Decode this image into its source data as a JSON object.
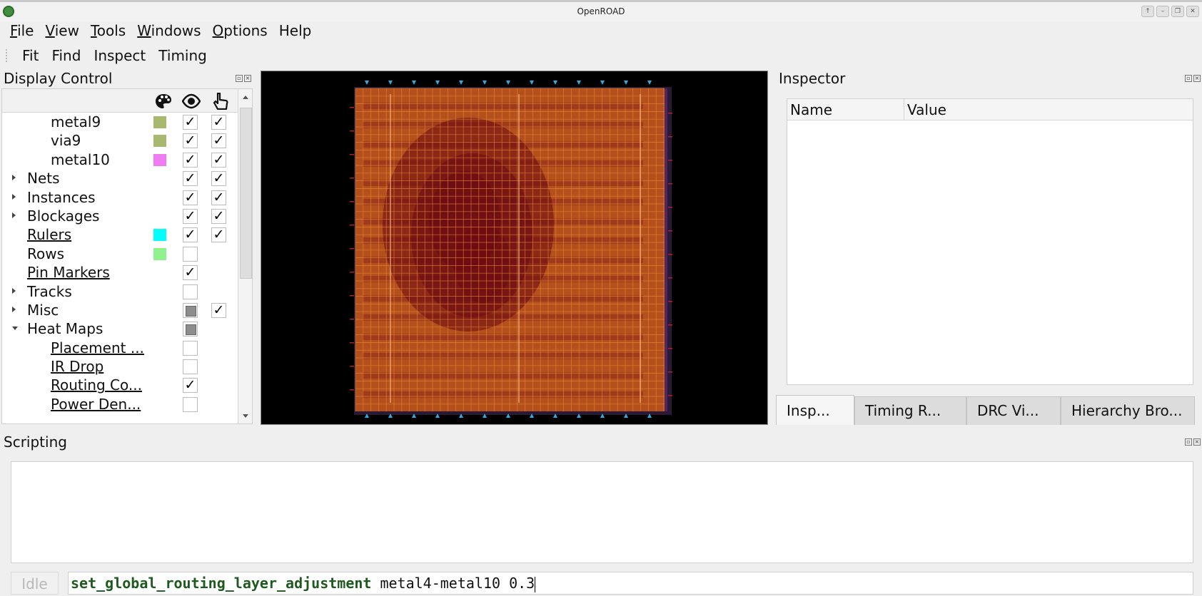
{
  "window": {
    "title": "OpenROAD",
    "controls": [
      "↑",
      "–",
      "❐",
      "✕"
    ]
  },
  "menubar": [
    {
      "mnemonic": "F",
      "rest": "ile"
    },
    {
      "mnemonic": "V",
      "rest": "iew"
    },
    {
      "mnemonic": "T",
      "rest": "ools"
    },
    {
      "mnemonic": "W",
      "rest": "indows"
    },
    {
      "mnemonic": "O",
      "rest": "ptions"
    },
    {
      "mnemonic": "",
      "rest": "Help"
    }
  ],
  "toolbar": [
    "Fit",
    "Find",
    "Inspect",
    "Timing"
  ],
  "display_control": {
    "title": "Display Control",
    "rows": [
      {
        "label": "metal9",
        "indent": 2,
        "swatch": "#a8b96f",
        "visible": "checked",
        "selectable": "checked"
      },
      {
        "label": "via9",
        "indent": 2,
        "swatch": "#a8b96f",
        "visible": "checked",
        "selectable": "checked"
      },
      {
        "label": "metal10",
        "indent": 2,
        "swatch": "#ef7cf0",
        "visible": "checked",
        "selectable": "checked"
      },
      {
        "label": "Nets",
        "indent": 1,
        "expander": "right",
        "visible": "checked",
        "selectable": "checked"
      },
      {
        "label": "Instances",
        "indent": 1,
        "expander": "right",
        "visible": "checked",
        "selectable": "checked"
      },
      {
        "label": "Blockages",
        "indent": 1,
        "expander": "right",
        "visible": "checked",
        "selectable": "checked"
      },
      {
        "label": "Rulers",
        "indent": 1,
        "link": true,
        "swatch": "#00ffff",
        "visible": "checked",
        "selectable": "checked"
      },
      {
        "label": "Rows",
        "indent": 1,
        "swatch": "#8ff28f",
        "visible": "unchecked"
      },
      {
        "label": "Pin Markers",
        "indent": 1,
        "link": true,
        "visible": "checked"
      },
      {
        "label": "Tracks",
        "indent": 1,
        "expander": "right",
        "visible": "unchecked"
      },
      {
        "label": "Misc",
        "indent": 1,
        "expander": "right",
        "visible": "partial",
        "selectable": "checked"
      },
      {
        "label": "Heat Maps",
        "indent": 1,
        "expander": "down",
        "visible": "partial"
      },
      {
        "label": "Placement ...",
        "indent": 2,
        "link": true,
        "visible": "unchecked"
      },
      {
        "label": "IR Drop",
        "indent": 2,
        "link": true,
        "visible": "unchecked"
      },
      {
        "label": "Routing Co...",
        "indent": 2,
        "link": true,
        "visible": "checked"
      },
      {
        "label": "Power Den...",
        "indent": 2,
        "link": true,
        "visible": "unchecked"
      }
    ]
  },
  "inspector": {
    "title": "Inspector",
    "columns": [
      "Name",
      "Value"
    ],
    "tabs": [
      "Insp...",
      "Timing R...",
      "DRC Vi...",
      "Hierarchy Bro..."
    ]
  },
  "scripting": {
    "title": "Scripting",
    "status": "Idle",
    "command_keyword": "set_global_routing_layer_adjustment",
    "command_args": " metal4-metal10 0.3"
  },
  "colors": {
    "die_background": "#b4501c",
    "grid_line": "#f08a3a",
    "congestion_hot": "#6a0a12",
    "pin_marker_blue": "#33aadd",
    "pin_marker_red": "#aa2233"
  }
}
